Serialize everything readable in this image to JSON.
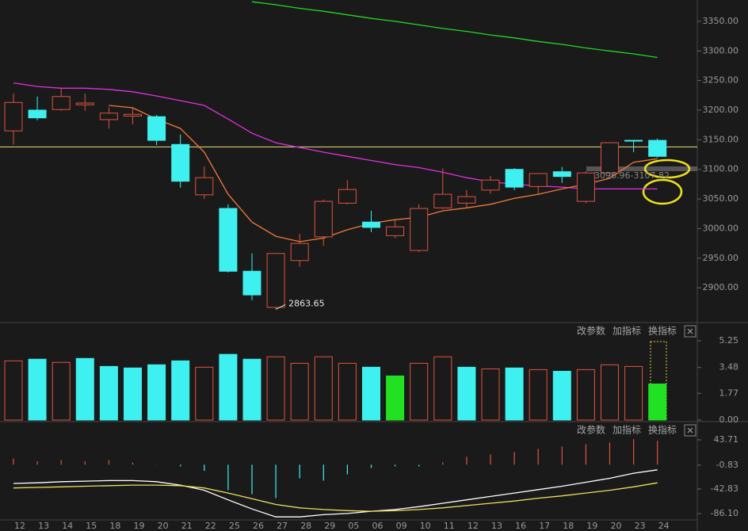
{
  "chart_data": [
    {
      "type": "candlestick",
      "categories": [
        "12",
        "13",
        "14",
        "15",
        "18",
        "19",
        "20",
        "21",
        "22",
        "25",
        "26",
        "27",
        "28",
        "29",
        "05",
        "06",
        "09",
        "10",
        "11",
        "12",
        "13",
        "16",
        "17",
        "18",
        "19",
        "20",
        "23",
        "24"
      ],
      "open": [
        3165,
        3200,
        3201,
        3209,
        3184,
        3190,
        3189,
        3142,
        3057,
        3034,
        2928,
        2867,
        2946,
        2986,
        3043,
        3011,
        2988,
        2963,
        3035,
        3043,
        3065,
        3100,
        3071,
        3096,
        3046,
        3094,
        3149,
        3149
      ],
      "high": [
        3228,
        3223,
        3236,
        3228,
        3205,
        3205,
        3192,
        3159,
        3105,
        3041,
        2958,
        2958,
        2991,
        3049,
        3082,
        3030,
        3014,
        3041,
        3102,
        3065,
        3089,
        3102,
        3094,
        3104,
        3097,
        3145,
        3149,
        3152
      ],
      "low": [
        3142,
        3183,
        3199,
        3199,
        3169,
        3176,
        3141,
        3069,
        3050,
        2926,
        2879,
        2863.65,
        2936,
        2971,
        3041,
        2994,
        2984,
        2960,
        3033,
        3035,
        3059,
        3065,
        3059,
        3077,
        3043,
        3094,
        3129,
        3120
      ],
      "close": [
        3213,
        3187,
        3223,
        3212,
        3195,
        3193,
        3149,
        3080,
        3086,
        2928,
        2888,
        2958,
        2975,
        3046,
        3066,
        3002,
        3003,
        3034,
        3058,
        3054,
        3082,
        3070,
        3093,
        3088,
        3094,
        3145,
        3148,
        3122
      ],
      "up_color": "#e0533f",
      "down_color": "#3ff0f0",
      "series": [
        {
          "color": "#22d822",
          "values": [
            null,
            null,
            null,
            null,
            null,
            null,
            null,
            null,
            null,
            null,
            3383,
            3378,
            3372,
            3367,
            3361,
            3355,
            3350,
            3344,
            3338,
            3333,
            3327,
            3322,
            3316,
            3311,
            3305,
            3300,
            3295,
            3289
          ]
        },
        {
          "color": "#e030e0",
          "values": [
            3246,
            3240,
            3237,
            3237,
            3235,
            3231,
            3224,
            3216,
            3208,
            3185,
            3161,
            3145,
            3137,
            3129,
            3122,
            3115,
            3108,
            3103,
            3095,
            3086,
            3079,
            3075,
            3072,
            3070,
            3067,
            3067,
            3067,
            3067
          ]
        },
        {
          "color": "#f07a3a",
          "values": [
            null,
            null,
            null,
            null,
            3208,
            3204,
            3185,
            3169,
            3129,
            3058,
            3011,
            2987,
            2978,
            2984,
            2998,
            3009,
            3015,
            3019,
            3030,
            3035,
            3041,
            3051,
            3058,
            3067,
            3075,
            3085,
            3112,
            3118
          ]
        }
      ],
      "hline": {
        "value": 3138,
        "color": "#e8e27a"
      },
      "annotations": [
        {
          "label": "2863.65",
          "value": 2863.65
        },
        {
          "label": "3096.96-3107.82"
        }
      ],
      "ylim": [
        2844,
        3386
      ],
      "yticks": [
        {
          "value": 2900,
          "label": "2900.00"
        },
        {
          "value": 2950,
          "label": "2950.00"
        },
        {
          "value": 3000,
          "label": "3000.00"
        },
        {
          "value": 3050,
          "label": "3050.00"
        },
        {
          "value": 3100,
          "label": "3100.00"
        },
        {
          "value": 3150,
          "label": "3150.00"
        },
        {
          "value": 3200,
          "label": "3200.00"
        },
        {
          "value": 3250,
          "label": "3250.00"
        },
        {
          "value": 3300,
          "label": "3300.00"
        },
        {
          "value": 3350,
          "label": "3350.00"
        }
      ]
    },
    {
      "type": "bar",
      "toolbar": [
        "改参数",
        "加指标",
        "换指标"
      ],
      "values": [
        3.92,
        4.03,
        3.82,
        4.08,
        3.55,
        3.45,
        3.66,
        3.92,
        3.5,
        4.35,
        4.03,
        4.19,
        3.76,
        4.19,
        3.76,
        3.5,
        2.92,
        3.76,
        4.19,
        3.5,
        3.39,
        3.45,
        3.34,
        3.23,
        3.34,
        3.66,
        3.55,
        2.39
      ],
      "colors": [
        "#e0533f",
        "#3ff0f0",
        "#e0533f",
        "#3ff0f0",
        "#3ff0f0",
        "#3ff0f0",
        "#3ff0f0",
        "#3ff0f0",
        "#e0533f",
        "#3ff0f0",
        "#3ff0f0",
        "#e0533f",
        "#e0533f",
        "#e0533f",
        "#e0533f",
        "#3ff0f0",
        "#22e022",
        "#e0533f",
        "#e0533f",
        "#3ff0f0",
        "#e0533f",
        "#3ff0f0",
        "#e0533f",
        "#3ff0f0",
        "#e0533f",
        "#e0533f",
        "#e0533f",
        "#22e022"
      ],
      "hollow_color": "#e0533f",
      "ylim": [
        0,
        6.3
      ],
      "yticks": [
        {
          "value": 0,
          "label": "0.00"
        },
        1.77,
        3.48,
        5.25
      ]
    },
    {
      "type": "macd",
      "toolbar": [
        "改参数",
        "加指标",
        "换指标"
      ],
      "values": [
        11,
        6,
        8,
        6,
        8,
        4,
        0.5,
        -3,
        -11,
        -45,
        -52,
        -59,
        -24,
        -28,
        -17,
        -6,
        -3,
        -3,
        4,
        14,
        18,
        22,
        28,
        32,
        36,
        39,
        45,
        42
      ],
      "pos_color": "#e0533f",
      "neg_color": "#3ff0f0",
      "series": [
        {
          "color": "#ffffff",
          "values": [
            -33,
            -32,
            -30,
            -29,
            -28,
            -28,
            -30,
            -36,
            -45,
            -62,
            -78,
            -92,
            -92,
            -88,
            -86,
            -82,
            -79,
            -74,
            -68,
            -62,
            -56,
            -50,
            -44,
            -38,
            -31,
            -24,
            -15,
            -9
          ]
        },
        {
          "color": "#e8e060",
          "values": [
            -41,
            -40,
            -39,
            -38,
            -37,
            -36,
            -36,
            -37,
            -41,
            -50,
            -60,
            -70,
            -76,
            -79,
            -81,
            -82,
            -81,
            -79,
            -76,
            -72,
            -68,
            -64,
            -59,
            -55,
            -50,
            -45,
            -39,
            -32
          ]
        }
      ],
      "ylim": [
        -116.8,
        71.6
      ],
      "yticks": [
        {
          "value": -86.1,
          "label": "-86.10"
        },
        -42.83,
        -0.83,
        43.71
      ]
    }
  ]
}
